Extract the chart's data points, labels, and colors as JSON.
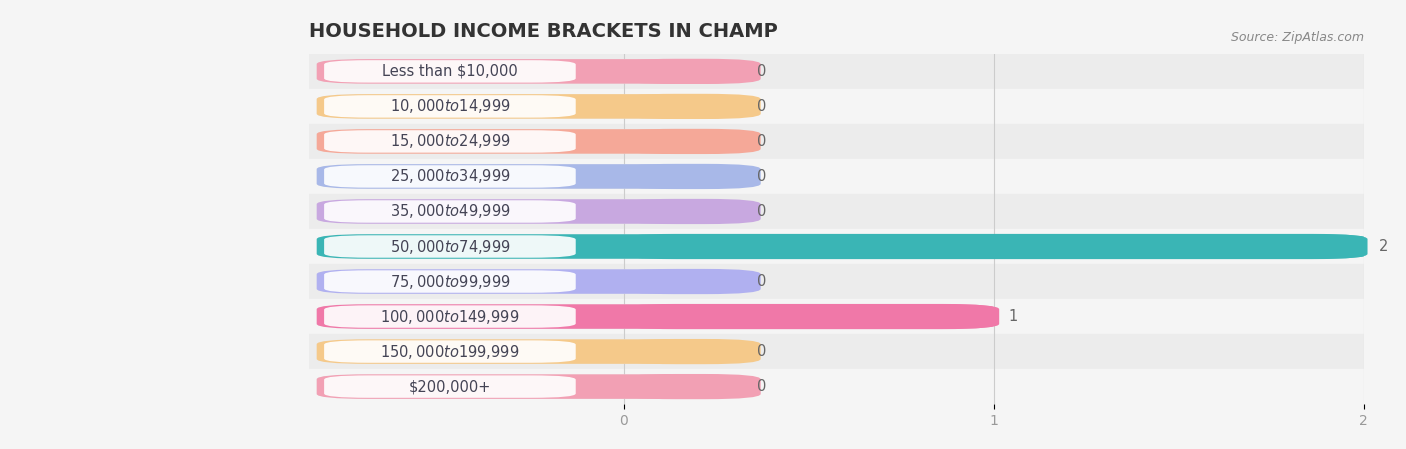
{
  "title": "HOUSEHOLD INCOME BRACKETS IN CHAMP",
  "source": "Source: ZipAtlas.com",
  "categories": [
    "Less than $10,000",
    "$10,000 to $14,999",
    "$15,000 to $24,999",
    "$25,000 to $34,999",
    "$35,000 to $49,999",
    "$50,000 to $74,999",
    "$75,000 to $99,999",
    "$100,000 to $149,999",
    "$150,000 to $199,999",
    "$200,000+"
  ],
  "values": [
    0,
    0,
    0,
    0,
    0,
    2,
    0,
    1,
    0,
    0
  ],
  "bar_colors": [
    "#f2a0b4",
    "#f5c98a",
    "#f5a898",
    "#a8b8e8",
    "#c8a8e0",
    "#3ab5b5",
    "#b0b0f0",
    "#f078a8",
    "#f5c98a",
    "#f2a0b4"
  ],
  "row_bg_color": "#ebebeb",
  "bar_bg_color": "#f0f0f0",
  "background_color": "#f5f5f5",
  "white_label_color": "#ffffff",
  "label_text_color": "#444455",
  "value_text_color": "#666666",
  "xlim": [
    0,
    2
  ],
  "xticks": [
    0,
    1,
    2
  ],
  "title_fontsize": 14,
  "label_fontsize": 10.5,
  "value_fontsize": 10.5,
  "tick_fontsize": 10
}
